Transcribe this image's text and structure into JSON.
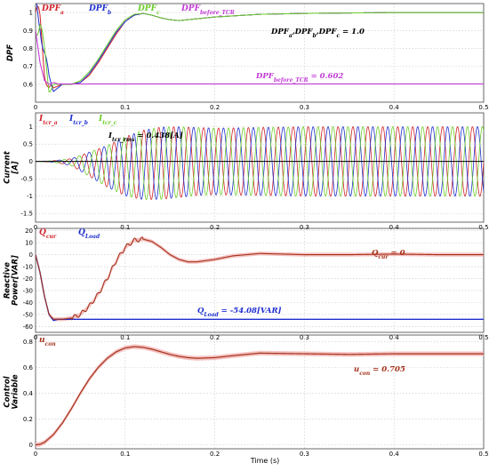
{
  "figure": {
    "xlabel": "Time (s)",
    "x_ticks": [
      "0",
      "0.1",
      "0.2",
      "0.3",
      "0.4",
      "0.5"
    ]
  },
  "colors": {
    "red": "#d2232a",
    "blue": "#1f2fcf",
    "green": "#6ccd2a",
    "magenta": "#c23ad6",
    "black": "#000000",
    "brown": "#a5321a",
    "pink_band": "#f2b3b3"
  },
  "chart_data": [
    {
      "type": "line",
      "ylabel": "DPF",
      "xlim": [
        0,
        0.5
      ],
      "ylim": [
        0.5,
        1.05
      ],
      "y_ticks": [
        "0.6",
        "0.7",
        "0.8",
        "0.9",
        "1"
      ],
      "legend": [
        {
          "base": "DPF",
          "sub": "a",
          "color": "#d2232a"
        },
        {
          "base": "DPF",
          "sub": "b",
          "color": "#1f2fcf"
        },
        {
          "base": "DPF",
          "sub": "c",
          "color": "#6ccd2a"
        },
        {
          "base": "DPF",
          "sub": "before_TCR",
          "color": "#c23ad6"
        }
      ],
      "annotations": {
        "dpf_final": "DPFa,DPFb,DPFc = 1.0",
        "dpf_final_parts": [
          "DPF",
          "a",
          ",DPF",
          "b",
          ",DPF",
          "c",
          " = 1.0"
        ],
        "dpf_before": "DPFbefore_TCR = 0.602",
        "dpf_before_parts": [
          "DPF",
          "before_TCR",
          " = 0.602"
        ]
      },
      "series": [
        {
          "name": "DPFa",
          "x": [
            0,
            0.005,
            0.01,
            0.015,
            0.02,
            0.03,
            0.04,
            0.05,
            0.06,
            0.07,
            0.08,
            0.09,
            0.1,
            0.11,
            0.12,
            0.13,
            0.14,
            0.15,
            0.16,
            0.17,
            0.18,
            0.19,
            0.2,
            0.25,
            0.3,
            0.4,
            0.5
          ],
          "y": [
            1.0,
            0.9,
            0.68,
            0.6,
            0.58,
            0.6,
            0.6,
            0.61,
            0.65,
            0.72,
            0.8,
            0.88,
            0.95,
            0.985,
            0.995,
            0.985,
            0.97,
            0.96,
            0.955,
            0.96,
            0.965,
            0.97,
            0.975,
            0.99,
            0.995,
            1.0,
            1.0
          ]
        },
        {
          "name": "DPFb",
          "x": [
            0,
            0.005,
            0.01,
            0.015,
            0.02,
            0.03,
            0.04,
            0.05,
            0.06,
            0.07,
            0.08,
            0.09,
            0.1,
            0.11,
            0.12,
            0.13,
            0.14,
            0.15,
            0.16,
            0.17,
            0.18,
            0.19,
            0.2,
            0.25,
            0.3,
            0.4,
            0.5
          ],
          "y": [
            1.0,
            0.97,
            0.8,
            0.62,
            0.56,
            0.6,
            0.6,
            0.61,
            0.66,
            0.73,
            0.81,
            0.89,
            0.95,
            0.985,
            0.995,
            0.985,
            0.97,
            0.96,
            0.955,
            0.96,
            0.965,
            0.97,
            0.975,
            0.99,
            0.995,
            1.0,
            1.0
          ]
        },
        {
          "name": "DPFc",
          "x": [
            0,
            0.005,
            0.01,
            0.015,
            0.02,
            0.03,
            0.04,
            0.05,
            0.06,
            0.07,
            0.08,
            0.09,
            0.1,
            0.11,
            0.12,
            0.13,
            0.14,
            0.15,
            0.16,
            0.17,
            0.18,
            0.19,
            0.2,
            0.25,
            0.3,
            0.4,
            0.5
          ],
          "y": [
            1.0,
            0.95,
            0.74,
            0.57,
            0.6,
            0.6,
            0.6,
            0.62,
            0.67,
            0.74,
            0.82,
            0.9,
            0.96,
            0.99,
            0.995,
            0.985,
            0.97,
            0.96,
            0.955,
            0.96,
            0.965,
            0.97,
            0.975,
            0.99,
            0.995,
            1.0,
            1.0
          ]
        },
        {
          "name": "DPFbefore_TCR",
          "x": [
            0,
            0.005,
            0.01,
            0.015,
            0.02,
            0.025,
            0.03,
            0.5
          ],
          "y": [
            0.9,
            0.72,
            0.62,
            0.6,
            0.61,
            0.602,
            0.602,
            0.602
          ]
        }
      ]
    },
    {
      "type": "line",
      "ylabel": "Current [A]",
      "xlim": [
        0,
        0.5
      ],
      "ylim": [
        -1.75,
        1.4
      ],
      "y_ticks": [
        "-1.5",
        "-1",
        "-0.5",
        "0",
        "0.5",
        "1"
      ],
      "legend": [
        {
          "base": "I",
          "sub": "tcr_a",
          "color": "#d2232a"
        },
        {
          "base": "I",
          "sub": "tcr_b",
          "color": "#1f2fcf"
        },
        {
          "base": "I",
          "sub": "tcr_c",
          "color": "#6ccd2a"
        }
      ],
      "annotations": {
        "i_rms": "Itcr_rms = 0.438[A]",
        "i_rms_parts": [
          "I",
          "tcr_rms",
          " = 0.438[A]"
        ]
      },
      "frequency_hz": 60,
      "envelope": {
        "x": [
          0,
          0.02,
          0.04,
          0.06,
          0.08,
          0.1,
          0.12,
          0.14,
          0.16,
          0.18,
          0.2,
          0.25,
          0.3,
          0.4,
          0.5
        ],
        "amplitude": [
          0,
          0.02,
          0.1,
          0.35,
          0.6,
          0.85,
          1.0,
          1.04,
          1.02,
          0.98,
          0.96,
          0.98,
          1.0,
          1.0,
          1.0
        ],
        "offset": [
          0,
          0,
          -0.02,
          -0.08,
          -0.14,
          -0.14,
          -0.1,
          -0.05,
          -0.02,
          0,
          0,
          0,
          0,
          0,
          0
        ]
      },
      "series": [
        {
          "name": "Itcr_a",
          "phase_deg": 0
        },
        {
          "name": "Itcr_b",
          "phase_deg": -120
        },
        {
          "name": "Itcr_c",
          "phase_deg": 120
        }
      ]
    },
    {
      "type": "line",
      "ylabel": "Reactive Power[VAR]",
      "xlim": [
        0,
        0.5
      ],
      "ylim": [
        -65,
        22
      ],
      "y_ticks": [
        "-60",
        "-50",
        "-40",
        "-30",
        "-20",
        "-10",
        "0",
        "10",
        "20"
      ],
      "legend": [
        {
          "base": "Q",
          "sub": "cur",
          "color": "#d2232a"
        },
        {
          "base": "Q",
          "sub": "Load",
          "color": "#1f2fcf"
        }
      ],
      "annotations": {
        "q_cur": "Qcur = 0",
        "q_cur_parts": [
          "Q",
          "cur",
          " = 0"
        ],
        "q_load": "QLoad = -54.08[VAR]",
        "q_load_parts": [
          "Q",
          "Load",
          " = -54.08[VAR]"
        ]
      },
      "series": [
        {
          "name": "Qcur",
          "x": [
            0,
            0.005,
            0.01,
            0.015,
            0.02,
            0.03,
            0.04,
            0.05,
            0.06,
            0.07,
            0.08,
            0.09,
            0.1,
            0.11,
            0.12,
            0.13,
            0.14,
            0.15,
            0.16,
            0.17,
            0.18,
            0.2,
            0.22,
            0.25,
            0.3,
            0.35,
            0.4,
            0.45,
            0.5
          ],
          "y": [
            0,
            -15,
            -35,
            -50,
            -54,
            -54,
            -53,
            -50,
            -43,
            -33,
            -20,
            -5,
            6,
            12,
            13,
            11,
            6,
            0,
            -4,
            -6,
            -6,
            -4,
            -1,
            1,
            0,
            0,
            0.5,
            0,
            0
          ]
        },
        {
          "name": "QLoad",
          "x": [
            0,
            0.005,
            0.01,
            0.015,
            0.02,
            0.025,
            0.5
          ],
          "y": [
            0,
            -15,
            -35,
            -50,
            -55,
            -54.08,
            -54.08
          ]
        }
      ]
    },
    {
      "type": "line",
      "ylabel": "Control Variable",
      "xlim": [
        0,
        0.5
      ],
      "ylim": [
        -0.03,
        0.85
      ],
      "y_ticks": [
        "0",
        "0.2",
        "0.4",
        "0.6",
        "0.8"
      ],
      "legend": [
        {
          "base": "u",
          "sub": "con",
          "color": "#a5321a"
        }
      ],
      "annotations": {
        "u_con": "ucon = 0.705",
        "u_con_parts": [
          "u",
          "con",
          " = 0.705"
        ]
      },
      "series": [
        {
          "name": "ucon",
          "x": [
            0,
            0.005,
            0.01,
            0.02,
            0.03,
            0.04,
            0.05,
            0.06,
            0.07,
            0.08,
            0.09,
            0.1,
            0.11,
            0.12,
            0.13,
            0.14,
            0.15,
            0.16,
            0.17,
            0.18,
            0.2,
            0.22,
            0.25,
            0.3,
            0.35,
            0.4,
            0.5
          ],
          "y": [
            0,
            0.005,
            0.02,
            0.08,
            0.17,
            0.28,
            0.4,
            0.51,
            0.6,
            0.67,
            0.72,
            0.75,
            0.76,
            0.755,
            0.74,
            0.72,
            0.7,
            0.685,
            0.675,
            0.67,
            0.675,
            0.69,
            0.71,
            0.705,
            0.7,
            0.705,
            0.705
          ]
        }
      ]
    }
  ]
}
